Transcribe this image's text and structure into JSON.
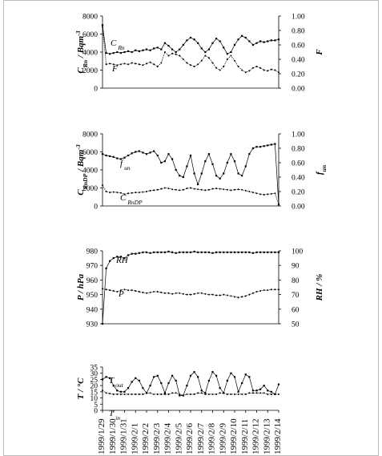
{
  "chart_data": [
    {
      "type": "line",
      "xlim": [
        0,
        48
      ],
      "ylim": [
        0,
        8000
      ],
      "yticks": [
        0,
        2000,
        4000,
        6000,
        8000
      ],
      "y2lim": [
        0,
        1
      ],
      "y2ticks": [
        {
          "value": 0,
          "label": "0.00"
        },
        {
          "value": 0.2,
          "label": "0.20"
        },
        {
          "value": 0.4,
          "label": "0.40"
        },
        {
          "value": 0.6,
          "label": "0.60"
        },
        {
          "value": 0.8,
          "label": "0.80"
        },
        {
          "value": 1,
          "label": "1.00"
        }
      ],
      "ylabel": {
        "main": "C",
        "sub": "Rn",
        "rest": " / Bqm",
        "sup": "-3"
      },
      "y2label": {
        "main": "F"
      },
      "series": [
        {
          "name": "C",
          "sub": "Rn",
          "color": "#000000",
          "values": [
            7000,
            3900,
            3800,
            3900,
            4000,
            3900,
            4000,
            4100,
            4000,
            4200,
            4100,
            4200,
            4300,
            4200,
            4400,
            4500,
            4300,
            5000,
            4700,
            4300,
            4000,
            4300,
            4800,
            5300,
            5600,
            5400,
            5000,
            4400,
            4000,
            4300,
            5000,
            5500,
            5200,
            4500,
            3800,
            4000,
            4800,
            5400,
            5800,
            5600,
            5200,
            4800,
            5000,
            5200,
            5100,
            5200,
            5300,
            5300,
            5400
          ]
        },
        {
          "name": "F",
          "axis": "y2",
          "color": "#000000",
          "values": [
            0.85,
            0.33,
            0.34,
            0.33,
            0.32,
            0.33,
            0.34,
            0.33,
            0.35,
            0.34,
            0.33,
            0.32,
            0.34,
            0.36,
            0.33,
            0.3,
            0.35,
            0.5,
            0.45,
            0.48,
            0.47,
            0.45,
            0.4,
            0.35,
            0.32,
            0.3,
            0.33,
            0.38,
            0.45,
            0.42,
            0.35,
            0.28,
            0.25,
            0.3,
            0.4,
            0.45,
            0.38,
            0.3,
            0.25,
            0.22,
            0.24,
            0.28,
            0.3,
            0.28,
            0.25,
            0.24,
            0.26,
            0.25,
            0.22
          ]
        }
      ]
    },
    {
      "type": "line",
      "xlim": [
        0,
        48
      ],
      "ylim": [
        0,
        8000
      ],
      "yticks": [
        0,
        2000,
        4000,
        6000,
        8000
      ],
      "y2lim": [
        0,
        1
      ],
      "y2ticks": [
        {
          "value": 0,
          "label": "0.00"
        },
        {
          "value": 0.2,
          "label": "0.20"
        },
        {
          "value": 0.4,
          "label": "0.40"
        },
        {
          "value": 0.6,
          "label": "0.60"
        },
        {
          "value": 0.8,
          "label": "0.80"
        },
        {
          "value": 1,
          "label": "1.00"
        }
      ],
      "ylabel": {
        "main": "C",
        "sub": "RnDP",
        "rest": " / Bqm",
        "sup": "-3"
      },
      "y2label": {
        "main": "f",
        "sub": "un"
      },
      "series": [
        {
          "name": "f",
          "sub": "un",
          "axis": "y2",
          "color": "#000000",
          "values": [
            0.72,
            0.7,
            0.69,
            0.68,
            0.66,
            0.65,
            0.67,
            0.7,
            0.73,
            0.75,
            0.76,
            0.74,
            0.72,
            0.74,
            0.76,
            0.7,
            0.6,
            0.62,
            0.72,
            0.65,
            0.5,
            0.42,
            0.4,
            0.55,
            0.7,
            0.45,
            0.3,
            0.45,
            0.62,
            0.72,
            0.58,
            0.42,
            0.38,
            0.45,
            0.6,
            0.72,
            0.62,
            0.45,
            0.42,
            0.55,
            0.72,
            0.8,
            0.82,
            0.82,
            0.83,
            0.84,
            0.85,
            0.86,
            0.02
          ]
        },
        {
          "name": "C",
          "sub": "RnDP",
          "color": "#000000",
          "values": [
            2300,
            1600,
            1500,
            1550,
            1500,
            1450,
            1300,
            1400,
            1450,
            1500,
            1500,
            1550,
            1600,
            1700,
            1750,
            1800,
            1900,
            2000,
            1950,
            1850,
            1800,
            1750,
            1800,
            1950,
            2000,
            1900,
            1850,
            1800,
            1750,
            1800,
            1900,
            1950,
            1900,
            1850,
            1800,
            1750,
            1800,
            1850,
            1800,
            1700,
            1600,
            1500,
            1400,
            1300,
            1250,
            1300,
            1350,
            1400,
            200
          ]
        }
      ]
    },
    {
      "type": "line",
      "xlim": [
        0,
        48
      ],
      "ylim": [
        930,
        980
      ],
      "yticks": [
        930,
        940,
        950,
        960,
        970,
        980
      ],
      "y2lim": [
        50,
        100
      ],
      "y2ticks": [
        50,
        60,
        70,
        80,
        90,
        100
      ],
      "ylabel": {
        "main": "P / hPa"
      },
      "y2label": {
        "main": "RH / %"
      },
      "series": [
        {
          "name": "RH",
          "axis": "y2",
          "color": "#000000",
          "values": [
            50,
            88,
            93,
            95,
            96,
            96,
            95,
            97,
            98,
            98,
            98.5,
            99,
            99,
            98.5,
            99,
            99,
            99,
            99,
            99.5,
            99,
            98.5,
            99,
            99,
            99,
            99,
            99.5,
            99,
            99,
            99,
            99,
            98.5,
            99,
            99,
            99,
            99,
            99,
            99,
            99,
            99,
            99,
            99,
            98.5,
            99,
            99,
            99,
            99,
            99,
            99,
            99
          ]
        },
        {
          "name": "P",
          "color": "#000000",
          "values": [
            954,
            953.5,
            953,
            952.5,
            952,
            953,
            953.5,
            953,
            953,
            952.5,
            952,
            951.5,
            951,
            951.5,
            952,
            952,
            951.5,
            951,
            951,
            950.5,
            951,
            951,
            950.5,
            950,
            950,
            950.5,
            951,
            951,
            950.5,
            950,
            950,
            949.5,
            949.5,
            950,
            949.5,
            949,
            948.5,
            948,
            948.5,
            949,
            950,
            951,
            952,
            952.5,
            953,
            953,
            953.5,
            953.5,
            953.5
          ]
        }
      ]
    },
    {
      "type": "line",
      "xlim": [
        0,
        48
      ],
      "xticks": [
        {
          "value": 0,
          "label": "1999/1/29"
        },
        {
          "value": 3,
          "label": "1999/1/30"
        },
        {
          "value": 6,
          "label": "1999/1/31"
        },
        {
          "value": 9,
          "label": "1999/2/1"
        },
        {
          "value": 12,
          "label": "1999/2/2"
        },
        {
          "value": 15,
          "label": "1999/2/3"
        },
        {
          "value": 18,
          "label": "1999/2/4"
        },
        {
          "value": 21,
          "label": "1999/2/5"
        },
        {
          "value": 24,
          "label": "1999/2/6"
        },
        {
          "value": 27,
          "label": "1999/2/7"
        },
        {
          "value": 30,
          "label": "1999/2/8"
        },
        {
          "value": 33,
          "label": "1999/2/9"
        },
        {
          "value": 36,
          "label": "1999/2/10"
        },
        {
          "value": 39,
          "label": "1999/2/11"
        },
        {
          "value": 42,
          "label": "1999/2/12"
        },
        {
          "value": 45,
          "label": "1999/2/13"
        },
        {
          "value": 48,
          "label": "1999/2/14"
        }
      ],
      "ylim": [
        0,
        35
      ],
      "yticks": [
        0,
        5,
        10,
        15,
        20,
        25,
        30,
        35
      ],
      "ylabel": {
        "main": "T / °C"
      },
      "series": [
        {
          "name": "T",
          "sub": "out",
          "color": "#000000",
          "values": [
            25,
            27,
            26,
            20,
            16,
            15,
            15,
            18,
            23,
            26,
            24,
            18,
            14,
            20,
            27,
            28,
            22,
            14,
            22,
            28,
            24,
            12,
            12,
            20,
            28,
            31,
            27,
            16,
            14,
            24,
            31,
            28,
            18,
            14,
            24,
            30,
            27,
            15,
            22,
            29,
            27,
            16,
            16,
            17,
            20,
            16,
            15,
            13,
            21
          ]
        },
        {
          "name": "T",
          "sub": "in",
          "color": "#000000",
          "values": [
            16,
            14,
            13.5,
            13,
            13,
            13,
            13,
            13,
            13,
            13,
            13,
            13,
            14,
            14,
            13,
            13,
            13,
            13,
            13,
            14,
            14,
            13,
            12,
            13,
            13,
            13,
            14,
            14,
            13,
            13,
            13,
            13,
            14,
            14,
            13,
            13,
            13,
            13,
            13,
            13,
            14,
            14,
            14,
            14,
            14,
            13,
            13,
            13,
            13
          ]
        }
      ]
    }
  ]
}
